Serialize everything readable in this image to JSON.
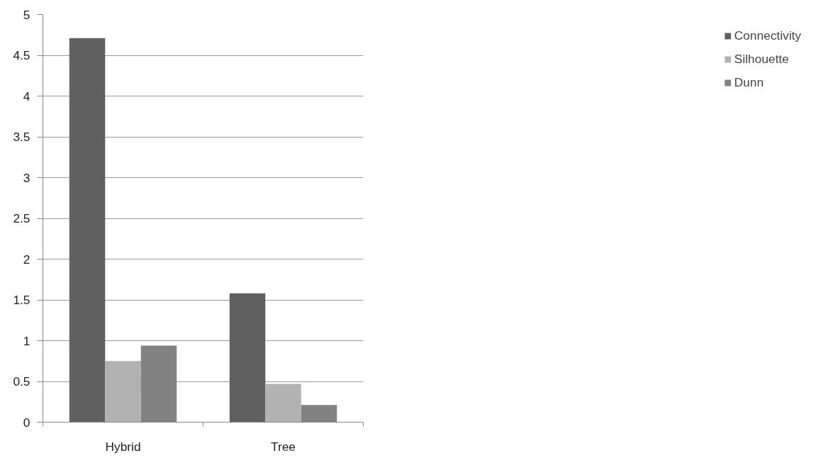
{
  "chart_data": {
    "type": "bar",
    "categories": [
      "Hybrid",
      "Tree"
    ],
    "series": [
      {
        "name": "Connectivity",
        "color": "#606060",
        "values": [
          4.71,
          1.58
        ]
      },
      {
        "name": "Silhouette",
        "color": "#b2b2b2",
        "values": [
          0.75,
          0.47
        ]
      },
      {
        "name": "Dunn",
        "color": "#828282",
        "values": [
          0.94,
          0.21
        ]
      }
    ],
    "ylim": [
      0,
      5
    ],
    "yticks": [
      0,
      0.5,
      1,
      1.5,
      2,
      2.5,
      3,
      3.5,
      4,
      4.5,
      5
    ],
    "grid": "y",
    "legend": "right"
  }
}
